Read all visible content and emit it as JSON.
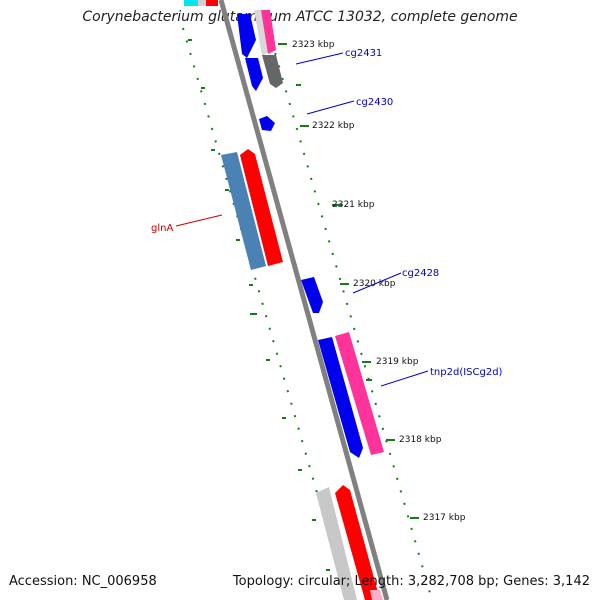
{
  "title": "Corynebacterium glutamicum ATCC 13032, complete genome",
  "footer": {
    "accession": "Accession: NC_006958",
    "summary": "Topology: circular; Length: 3,282,708 bp; Genes: 3,142"
  },
  "colors": {
    "backbone": "#808080",
    "ruler": "#1a7a1a",
    "label_blue": "#0000cc",
    "label_red": "#cc0000"
  },
  "ticks": [
    "2323 kbp",
    "2322 kbp",
    "2321 kbp",
    "2320 kbp",
    "2319 kbp",
    "2318 kbp",
    "2317 kbp"
  ],
  "gene_labels": [
    {
      "name": "cg2431",
      "color": "#0000cc"
    },
    {
      "name": "cg2430",
      "color": "#0000cc"
    },
    {
      "name": "glnA",
      "color": "#cc0000"
    },
    {
      "name": "cg2428",
      "color": "#0000cc"
    },
    {
      "name": "tnp2d(ISCg2d)",
      "color": "#0000cc"
    }
  ],
  "gene_colors": {
    "blue": "#0000ee",
    "red": "#ff0000",
    "steelblue": "#4a82b4",
    "pink": "#ff3399",
    "grey": "#666666",
    "lightgrey": "#c8c8c8",
    "cyan": "#00e5ee"
  }
}
